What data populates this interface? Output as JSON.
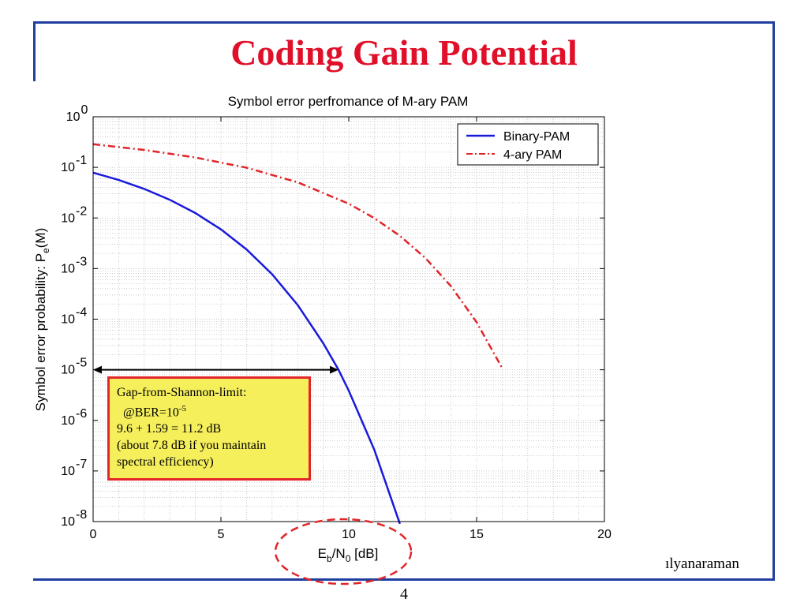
{
  "slide": {
    "title": "Coding Gain Potential",
    "page_number": "4",
    "footer_author": "ılyanaraman"
  },
  "chart_data": {
    "type": "line",
    "title": "Symbol error perfromance of M-ary PAM",
    "xlabel": "E_b/N_0 [dB]",
    "ylabel": "Symbol error probability: P_e(M)",
    "xlim": [
      0,
      20
    ],
    "ylim": [
      1e-08,
      1
    ],
    "yscale": "log",
    "grid": true,
    "legend_position": "top-right",
    "x_ticks": [
      "0",
      "5",
      "10",
      "15",
      "20"
    ],
    "y_ticks": [
      {
        "base": "10",
        "exp": "0"
      },
      {
        "base": "10",
        "exp": "-1"
      },
      {
        "base": "10",
        "exp": "-2"
      },
      {
        "base": "10",
        "exp": "-3"
      },
      {
        "base": "10",
        "exp": "-4"
      },
      {
        "base": "10",
        "exp": "-5"
      },
      {
        "base": "10",
        "exp": "-6"
      },
      {
        "base": "10",
        "exp": "-7"
      },
      {
        "base": "10",
        "exp": "-8"
      }
    ],
    "series": [
      {
        "name": "Binary-PAM",
        "color": "#1a1adb",
        "style": "solid",
        "x": [
          0,
          1,
          2,
          3,
          4,
          5,
          6,
          7,
          8,
          9,
          9.6,
          10,
          11,
          12
        ],
        "y": [
          0.0786,
          0.0563,
          0.0375,
          0.0229,
          0.0125,
          0.00595,
          0.00239,
          0.000773,
          0.000191,
          3.36e-05,
          1e-05,
          3.87e-06,
          2.62e-07,
          9.01e-09
        ]
      },
      {
        "name": "4-ary PAM",
        "color": "#e0262a",
        "style": "dash-dot",
        "x": [
          0,
          2,
          4,
          6,
          8,
          10,
          11,
          12,
          13,
          14,
          15,
          16
        ],
        "y": [
          0.287,
          0.221,
          0.157,
          0.0985,
          0.0508,
          0.0191,
          0.00992,
          0.00443,
          0.00161,
          0.000447,
          8.74e-05,
          1.08e-05
        ]
      }
    ],
    "annotations": {
      "gap_arrow": {
        "from_x": 0,
        "to_x": 9.6,
        "y": 1e-05
      },
      "box_lines": [
        "Gap-from-Shannon-limit:",
        "@BER=10",
        "-5",
        "9.6 + 1.59 = 11.2 dB",
        "(about 7.8 dB if you maintain",
        "spectral efficiency)"
      ],
      "ellipse_color": "#e0262a"
    }
  }
}
